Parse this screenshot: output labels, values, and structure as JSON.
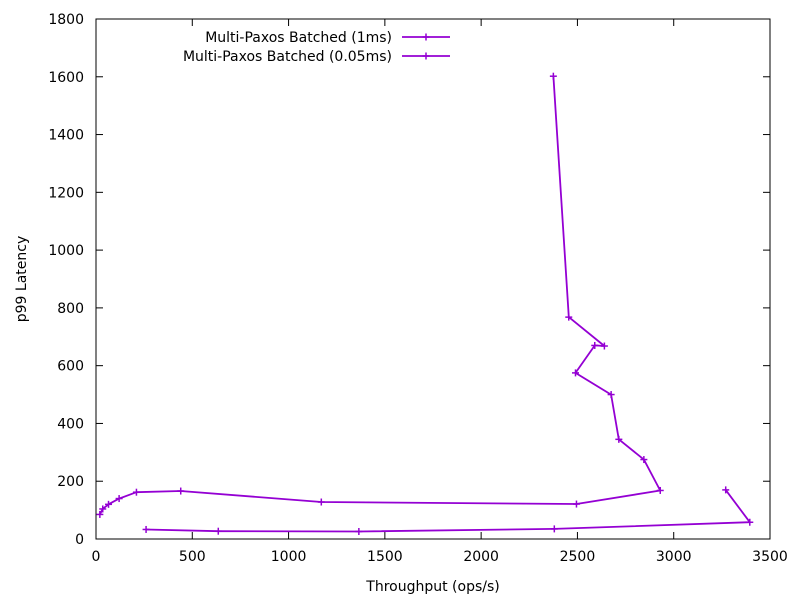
{
  "chart_data": {
    "type": "line",
    "title": "",
    "xlabel": "Throughput (ops/s)",
    "ylabel": "p99 Latency",
    "xlim": [
      0,
      3500
    ],
    "ylim": [
      0,
      1800
    ],
    "x_ticks": [
      0,
      500,
      1000,
      1500,
      2000,
      2500,
      3000,
      3500
    ],
    "y_ticks": [
      0,
      200,
      400,
      600,
      800,
      1000,
      1200,
      1400,
      1600,
      1800
    ],
    "grid": false,
    "legend_position": "top-left",
    "series": [
      {
        "name": "Multi-Paxos Batched (1ms)",
        "color": "#9400d3",
        "points": [
          [
            2375,
            1602
          ],
          [
            2455,
            768
          ],
          [
            2640,
            668
          ],
          [
            2590,
            670
          ],
          [
            2490,
            575
          ],
          [
            2675,
            500
          ],
          [
            2715,
            345
          ],
          [
            2845,
            275
          ],
          [
            2930,
            168
          ],
          [
            2495,
            121
          ],
          [
            1170,
            128
          ],
          [
            440,
            166
          ],
          [
            210,
            162
          ],
          [
            120,
            140
          ],
          [
            65,
            120
          ],
          [
            35,
            104
          ],
          [
            20,
            85
          ]
        ]
      },
      {
        "name": "Multi-Paxos Batched (0.05ms)",
        "color": "#9400d3",
        "points": [
          [
            3270,
            170
          ],
          [
            3395,
            58
          ],
          [
            2380,
            35
          ],
          [
            1365,
            26
          ],
          [
            635,
            27
          ],
          [
            260,
            33
          ]
        ]
      }
    ]
  }
}
